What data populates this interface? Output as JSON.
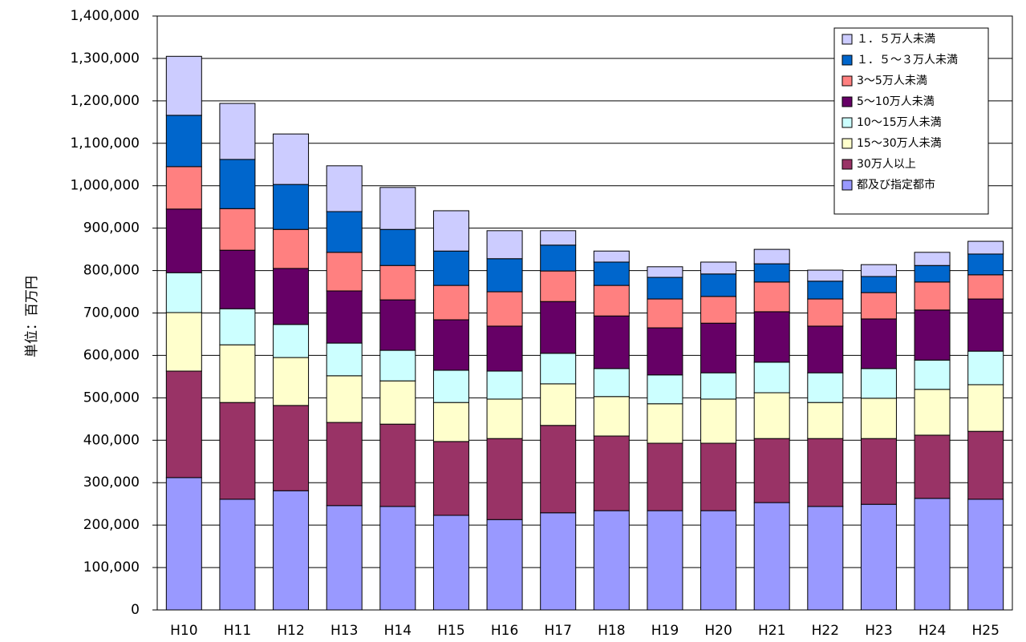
{
  "chart_data": {
    "type": "stacked_bar",
    "y_label": "単位：百万円",
    "categories": [
      "H10",
      "H11",
      "H12",
      "H13",
      "H14",
      "H15",
      "H16",
      "H17",
      "H18",
      "H19",
      "H20",
      "H21",
      "H22",
      "H23",
      "H24",
      "H25"
    ],
    "series": [
      {
        "name": "都及び指定都市",
        "color": "#9999ff",
        "values": [
          312000,
          261000,
          281000,
          246000,
          244000,
          223000,
          213000,
          229000,
          234000,
          234000,
          234000,
          253000,
          244000,
          249000,
          263000,
          261000
        ]
      },
      {
        "name": "30万人以上",
        "color": "#993366",
        "values": [
          251000,
          228000,
          201000,
          196000,
          194000,
          174000,
          191000,
          206000,
          176000,
          159000,
          159000,
          151000,
          160000,
          155000,
          149000,
          160000
        ]
      },
      {
        "name": "15～30万人未満",
        "color": "#ffffcc",
        "values": [
          138000,
          136000,
          113000,
          110000,
          102000,
          92000,
          93000,
          98000,
          93000,
          93000,
          104000,
          108000,
          85000,
          95000,
          108000,
          110000
        ]
      },
      {
        "name": "10～15万人未満",
        "color": "#ccffff",
        "values": [
          94000,
          85000,
          78000,
          77000,
          72000,
          76000,
          66000,
          72000,
          66000,
          68000,
          62000,
          72000,
          70000,
          70000,
          69000,
          79000
        ]
      },
      {
        "name": "5～10万人未満",
        "color": "#660066",
        "values": [
          150000,
          138000,
          132000,
          123000,
          119000,
          119000,
          106000,
          122000,
          124000,
          111000,
          117000,
          119000,
          110000,
          117000,
          118000,
          123000
        ]
      },
      {
        "name": "3～5万人未満",
        "color": "#ff8080",
        "values": [
          100000,
          98000,
          92000,
          91000,
          81000,
          81000,
          81000,
          72000,
          72000,
          68000,
          63000,
          70000,
          64000,
          62000,
          66000,
          57000
        ]
      },
      {
        "name": "１．５～３万人未満",
        "color": "#0066cc",
        "values": [
          121000,
          116000,
          106000,
          96000,
          85000,
          81000,
          78000,
          61000,
          55000,
          51000,
          53000,
          43000,
          42000,
          38000,
          39000,
          49000
        ]
      },
      {
        "name": "１．５万人未満",
        "color": "#ccccff",
        "values": [
          139000,
          132000,
          119000,
          108000,
          99000,
          95000,
          66000,
          34000,
          26000,
          25000,
          28000,
          34000,
          26000,
          28000,
          31000,
          30000
        ]
      }
    ],
    "ylim": [
      0,
      1400000
    ],
    "yticks": [
      0,
      {
        "value": 100000,
        "label": "100,000"
      },
      {
        "value": 200000,
        "label": "200,000"
      },
      {
        "value": 300000,
        "label": "300,000"
      },
      {
        "value": 400000,
        "label": "400,000"
      },
      {
        "value": 500000,
        "label": "500,000"
      },
      {
        "value": 600000,
        "label": "600,000"
      },
      {
        "value": 700000,
        "label": "700,000"
      },
      {
        "value": 800000,
        "label": "800,000"
      },
      {
        "value": 900000,
        "label": "900,000"
      },
      {
        "value": 1000000,
        "label": "1,000,000"
      },
      {
        "value": 1100000,
        "label": "1,100,000"
      },
      {
        "value": 1200000,
        "label": "1,200,000"
      },
      {
        "value": 1300000,
        "label": "1,300,000"
      },
      {
        "value": 1400000,
        "label": "1,400,000"
      }
    ],
    "grid": true,
    "legend": "upper-right"
  }
}
